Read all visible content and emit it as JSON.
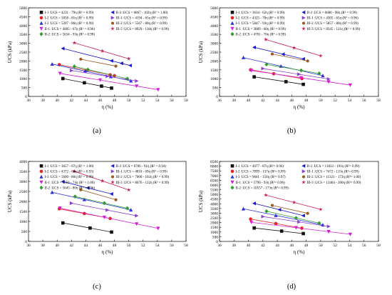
{
  "colors": {
    "I-1": "#111111",
    "I-2": "#e8231f",
    "I-3": "#2b32d8",
    "II-1": "#d61fd6",
    "II-2": "#2f9e2f",
    "II-3": "#1a1acd",
    "III-1": "#8a3ccf",
    "III-2": "#9a5a22",
    "III-3": "#c8194f"
  },
  "chart_data": [
    {
      "type": "scatter",
      "panel_label": "(a)",
      "xlabel": "η (%)",
      "ylabel": "UCS (kPa)",
      "xlim": [
        36,
        58
      ],
      "ylim": [
        0,
        5000
      ],
      "x_ticks": [
        36,
        38,
        40,
        42,
        44,
        46,
        48,
        50,
        52,
        54,
        56,
        58
      ],
      "y_ticks": [
        0,
        500,
        1000,
        1500,
        2000,
        2500,
        3000,
        3500,
        4000,
        4500,
        5000
      ],
      "series": [
        {
          "key": "I-1",
          "name": "I-1 :UCS = 4231 - 79η  (R² = 0.99)",
          "marker": "square",
          "slope": -79,
          "intercept": 4231,
          "x": [
            40.8,
            43.8,
            46.2,
            47.6
          ]
        },
        {
          "key": "I-2",
          "name": "I-2 :UCS = 5058 - 81η  (R² = 0.99)",
          "marker": "circle",
          "slope": -81,
          "intercept": 5058,
          "x": [
            40.3,
            44.2,
            47.4,
            48.0
          ]
        },
        {
          "key": "I-3",
          "name": "I-3 :UCS = 5207 - 86η  (R² = 0.99)",
          "marker": "triangle-up",
          "slope": -86,
          "intercept": 5207,
          "x": [
            39.3,
            43.9,
            47.5,
            50.3
          ]
        },
        {
          "key": "II-1",
          "name": "II-1 :UCS = 4005 - 67η  (R² = 0.96)",
          "marker": "triangle-down",
          "slope": -67,
          "intercept": 4005,
          "x": [
            40.4,
            46.0,
            51.1,
            54.1
          ]
        },
        {
          "key": "II-2",
          "name": "II-2 :UCS = 5634 - 93η  (R² = 0.99)",
          "marker": "diamond",
          "slope": -93,
          "intercept": 5634,
          "x": [
            42.4,
            44.3,
            49.8
          ]
        },
        {
          "key": "II-3",
          "name": "II-3 :UCS = 6867 - 102η  (R² = 1.00)",
          "marker": "triangle-left",
          "slope": -102,
          "intercept": 6867,
          "x": [
            40.8,
            47.6,
            49.0,
            50.2
          ]
        },
        {
          "key": "III-1",
          "name": "III-1 :UCS = 4194 - 65η  (R² = 0.99)",
          "marker": "triangle-right",
          "slope": -65,
          "intercept": 4194,
          "x": [
            42.0,
            47.0,
            51.1
          ]
        },
        {
          "key": "III-2",
          "name": "III-2 :UCS = 5567 - 80η  (R² = 0.99)",
          "marker": "hexagon",
          "slope": -80,
          "intercept": 5567,
          "x": [
            43.3,
            48.2
          ]
        },
        {
          "key": "III-3",
          "name": "III-3 :UCS = 8029 - 118η  (R² = 0.99)",
          "marker": "star",
          "slope": -118,
          "intercept": 8029,
          "x": [
            42.4,
            46.3,
            50.0
          ]
        }
      ]
    },
    {
      "type": "scatter",
      "panel_label": "(b)",
      "xlabel": "η (%)",
      "ylabel": "UCS (kPa)",
      "xlim": [
        36,
        58
      ],
      "ylim": [
        0,
        5000
      ],
      "x_ticks": [
        36,
        38,
        40,
        42,
        44,
        46,
        48,
        50,
        52,
        54,
        56,
        58
      ],
      "y_ticks": [
        0,
        500,
        1000,
        1500,
        2000,
        2500,
        3000,
        3500,
        4000,
        4500,
        5000
      ],
      "series": [
        {
          "key": "I-1",
          "name": "I-1 :UCS = 3634 - 62η  (R² = 0.99)",
          "marker": "square",
          "slope": -62,
          "intercept": 3634,
          "x": [
            40.8,
            45.2,
            47.6
          ]
        },
        {
          "key": "I-2",
          "name": "I-2 :UCS = 4325 - 70η  (R² = 0.99)",
          "marker": "circle",
          "slope": -70,
          "intercept": 4325,
          "x": [
            40.3,
            43.5,
            47.4
          ]
        },
        {
          "key": "I-3",
          "name": "I-3 :UCS = 5847 - 93η  (R² = 0.99)",
          "marker": "triangle-up",
          "slope": -93,
          "intercept": 5847,
          "x": [
            39.3,
            44.5,
            50.3
          ]
        },
        {
          "key": "II-1",
          "name": "II-1 :UCS = 3889 - 60η  (R² = 0.99)",
          "marker": "triangle-down",
          "slope": -60,
          "intercept": 3889,
          "x": [
            40.4,
            47.3,
            51.1,
            54.1
          ]
        },
        {
          "key": "II-2",
          "name": "II-2 :UCS = 4781 - 70η  (R² = 0.99)",
          "marker": "diamond",
          "slope": -70,
          "intercept": 4781,
          "x": [
            42.5,
            47.3,
            49.8
          ]
        },
        {
          "key": "II-3",
          "name": "II-3 :UCS = 6686 - 96η  (R² = 0.99)",
          "marker": "triangle-left",
          "slope": -96,
          "intercept": 6686,
          "x": [
            40.8,
            44.8,
            47.6
          ]
        },
        {
          "key": "III-1",
          "name": "III-1 :UCS = 4305 - 65η  (R² = 0.96)",
          "marker": "triangle-right",
          "slope": -65,
          "intercept": 4305,
          "x": [
            42.0,
            47.0,
            51.1
          ]
        },
        {
          "key": "III-2",
          "name": "III-2 :UCS = 5857 - 80η  (R² = 0.99)",
          "marker": "hexagon",
          "slope": -80,
          "intercept": 5857,
          "x": [
            43.3,
            48.2
          ]
        },
        {
          "key": "III-3",
          "name": "III-3 :UCS = 8345 - 121η  (R² = 0.99)",
          "marker": "star",
          "slope": -121,
          "intercept": 8345,
          "x": [
            42.4,
            46.3,
            50.0
          ]
        }
      ]
    },
    {
      "type": "scatter",
      "panel_label": "(c)",
      "xlabel": "η (%)",
      "ylabel": "UCS (kPa)",
      "xlim": [
        36,
        58
      ],
      "ylim": [
        0,
        4000
      ],
      "x_ticks": [
        36,
        38,
        40,
        42,
        44,
        46,
        48,
        50,
        52,
        54,
        56,
        58
      ],
      "y_ticks": [
        0,
        500,
        1000,
        1500,
        2000,
        2500,
        3000,
        3500,
        4000
      ],
      "series": [
        {
          "key": "I-1",
          "name": "I-1 :UCS = 3657 - 67η  (R² = 1.00)",
          "marker": "square",
          "slope": -67,
          "intercept": 3657,
          "x": [
            40.8,
            44.6,
            47.6
          ]
        },
        {
          "key": "I-2",
          "name": "I-2 :UCS = 4372 - 68η  (R² = 0.93)",
          "marker": "circle",
          "slope": -68,
          "intercept": 4372,
          "x": [
            40.3,
            43.8,
            47.4
          ]
        },
        {
          "key": "I-3",
          "name": "I-3 :UCS = 5600 - 80η  (R² = 0.99)",
          "marker": "triangle-up",
          "slope": -80,
          "intercept": 5600,
          "x": [
            39.3,
            43.8,
            50.3
          ]
        },
        {
          "key": "II-1",
          "name": "II-1 :UCS = 4656 - 74η  (R² = 1.00)",
          "marker": "triangle-down",
          "slope": -74,
          "intercept": 4656,
          "x": [
            40.4,
            46.6,
            51.1,
            54.1
          ]
        },
        {
          "key": "II-2",
          "name": "II-2 :UCS = 5645 - 80η  (R² = 0.96)",
          "marker": "diamond",
          "slope": -80,
          "intercept": 5645,
          "x": [
            42.5,
            46.6,
            49.8
          ]
        },
        {
          "key": "II-3",
          "name": "II-3 :UCS = 6706 - 91η  (R² = 0.94)",
          "marker": "triangle-left",
          "slope": -91,
          "intercept": 6706,
          "x": [
            40.8,
            44.3,
            47.6
          ]
        },
        {
          "key": "III-1",
          "name": "III-1 :UCS = 4810 - 69η  (R² = 0.99)",
          "marker": "triangle-right",
          "slope": -69,
          "intercept": 4810,
          "x": [
            42.0,
            47.0,
            51.1
          ]
        },
        {
          "key": "III-2",
          "name": "III-2 :UCS = 7000 - 102η  (R² = 0.99)",
          "marker": "hexagon",
          "slope": -102,
          "intercept": 7000,
          "x": [
            43.3,
            48.2
          ]
        },
        {
          "key": "III-3",
          "name": "III-3 :UCS = 8676 - 122η  (R² = 0.99)",
          "marker": "star",
          "slope": -122,
          "intercept": 8676,
          "x": [
            42.4,
            46.3,
            50.0
          ]
        }
      ]
    },
    {
      "type": "scatter",
      "panel_label": "(d)",
      "xlabel": "η (%)",
      "ylabel": "UCS (kPa)",
      "xlim": [
        36,
        58
      ],
      "ylim": [
        0,
        8500
      ],
      "x_ticks": [
        36,
        38,
        40,
        42,
        44,
        46,
        48,
        50,
        52,
        54,
        56,
        58
      ],
      "y_ticks": [
        0,
        500,
        1000,
        1500,
        2000,
        2500,
        3000,
        3500,
        4000,
        4500,
        5000,
        5500,
        6000,
        6500,
        7000,
        7500,
        8000,
        8500
      ],
      "series": [
        {
          "key": "I-1",
          "name": "I-1 :UCS = 4977 - 87η  (R²= 0.96)",
          "marker": "square",
          "slope": -87,
          "intercept": 4977,
          "x": [
            40.8,
            44.6,
            47.6
          ]
        },
        {
          "key": "I-2",
          "name": "I-2 :UCS = 7899 - 137η  (R²= 0.99)",
          "marker": "circle",
          "slope": -137,
          "intercept": 7899,
          "x": [
            40.3,
            43.8,
            47.4
          ]
        },
        {
          "key": "I-3",
          "name": "I-3 :UCS = 9601 - 156η  (R²= 0.97)",
          "marker": "triangle-up",
          "slope": -156,
          "intercept": 9601,
          "x": [
            39.3,
            43.8,
            50.3
          ]
        },
        {
          "key": "II-1",
          "name": "II-1 :UCS = 5790 - 93η  (R²= 0.96)",
          "marker": "triangle-down",
          "slope": -93,
          "intercept": 5790,
          "x": [
            40.4,
            46.6,
            51.1,
            54.1
          ]
        },
        {
          "key": "II-2",
          "name": "II-2 :UCS = 10557 - 173η  (R²= 0.99)",
          "marker": "diamond",
          "slope": -173,
          "intercept": 10557,
          "x": [
            42.5,
            46.6,
            49.8
          ]
        },
        {
          "key": "II-3",
          "name": "II-3 :UCS = 11833 - 191η  (R²= 0.99)",
          "marker": "triangle-left",
          "slope": -191,
          "intercept": 11833,
          "x": [
            40.8,
            44.3,
            47.6
          ]
        },
        {
          "key": "III-1",
          "name": "III-1 :UCS = 7472 - 115η  (R²= 0.99)",
          "marker": "triangle-right",
          "slope": -115,
          "intercept": 7472,
          "x": [
            42.0,
            47.0,
            51.1
          ]
        },
        {
          "key": "III-2",
          "name": "III-2 :UCS = 11321 - 173η  (R²= 1.00)",
          "marker": "hexagon",
          "slope": -173,
          "intercept": 11321,
          "x": [
            43.3,
            48.2
          ]
        },
        {
          "key": "III-3",
          "name": "III-3 :UCS = 13404 - 200η  (R²= 0.99)",
          "marker": "star",
          "slope": -200,
          "intercept": 13404,
          "x": [
            42.4,
            46.3,
            50.0
          ]
        }
      ]
    }
  ]
}
